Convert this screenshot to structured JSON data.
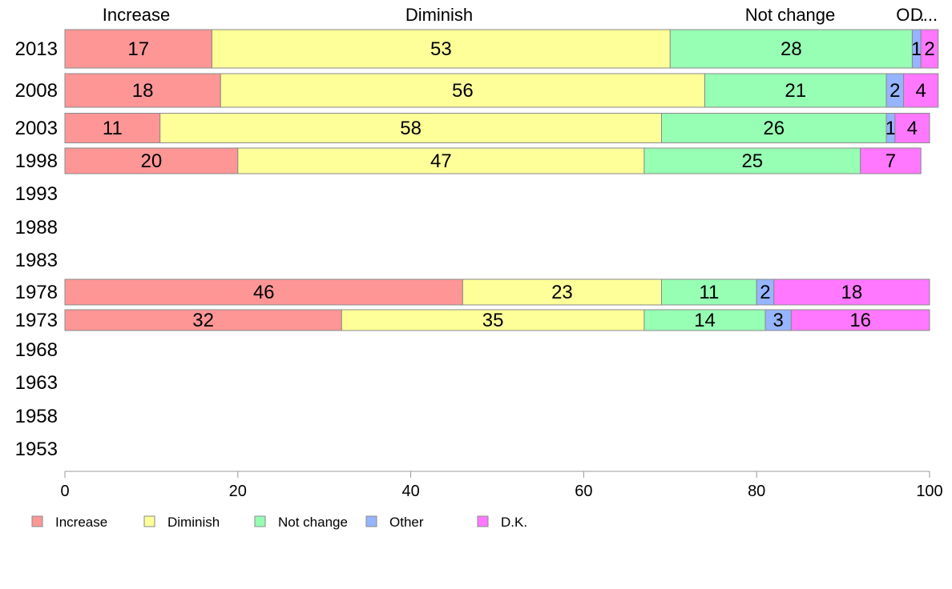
{
  "chart_data": {
    "type": "bar",
    "orientation": "horizontal",
    "stacked": true,
    "title": "",
    "xlabel": "",
    "ylabel": "",
    "xlim": [
      0,
      100
    ],
    "x_ticks": [
      0,
      20,
      40,
      60,
      80,
      100
    ],
    "categories": [
      "2013",
      "2008",
      "2003",
      "1998",
      "1993",
      "1988",
      "1983",
      "1978",
      "1973",
      "1968",
      "1963",
      "1958",
      "1953"
    ],
    "top_labels": [
      "Increase",
      "Diminish",
      "Not change",
      "O...",
      "D..."
    ],
    "series": [
      {
        "name": "Increase",
        "color": "#ff9696",
        "values": [
          17,
          18,
          11,
          20,
          null,
          null,
          null,
          46,
          32,
          null,
          null,
          null,
          null
        ]
      },
      {
        "name": "Diminish",
        "color": "#ffff99",
        "values": [
          53,
          56,
          58,
          47,
          null,
          null,
          null,
          23,
          35,
          null,
          null,
          null,
          null
        ]
      },
      {
        "name": "Not change",
        "color": "#96ffb4",
        "values": [
          28,
          21,
          26,
          25,
          null,
          null,
          null,
          11,
          14,
          null,
          null,
          null,
          null
        ]
      },
      {
        "name": "Other",
        "color": "#96b4ff",
        "values": [
          1,
          2,
          1,
          0,
          null,
          null,
          null,
          2,
          3,
          null,
          null,
          null,
          null
        ]
      },
      {
        "name": "D.K.",
        "color": "#ff78ff",
        "values": [
          2,
          4,
          4,
          7,
          null,
          null,
          null,
          18,
          16,
          null,
          null,
          null,
          null
        ]
      }
    ],
    "legend_position": "bottom",
    "grid": false
  }
}
